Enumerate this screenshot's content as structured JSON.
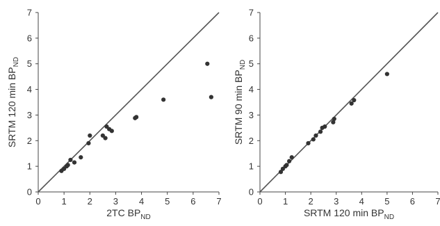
{
  "chart_data": [
    {
      "type": "scatter",
      "title": "",
      "xlabel": {
        "main": "2TC BP",
        "sub": "ND"
      },
      "ylabel": {
        "main": "SRTM 120 min BP",
        "sub": "ND"
      },
      "xlim": [
        0,
        7
      ],
      "ylim": [
        0,
        7
      ],
      "xticks": [
        "0",
        "1",
        "2",
        "3",
        "4",
        "5",
        "6",
        "7"
      ],
      "yticks": [
        "0",
        "1",
        "2",
        "3",
        "4",
        "5",
        "6",
        "7"
      ],
      "identity_line": true,
      "grid": false,
      "colors": {
        "points": "#333333",
        "line": "#555555",
        "axis": "#444444"
      },
      "points": [
        [
          0.9,
          0.82
        ],
        [
          1.0,
          0.9
        ],
        [
          1.1,
          1.0
        ],
        [
          1.15,
          1.05
        ],
        [
          1.25,
          1.25
        ],
        [
          1.4,
          1.15
        ],
        [
          1.65,
          1.35
        ],
        [
          1.95,
          1.9
        ],
        [
          2.0,
          2.2
        ],
        [
          2.5,
          2.2
        ],
        [
          2.6,
          2.1
        ],
        [
          2.65,
          2.55
        ],
        [
          2.75,
          2.45
        ],
        [
          2.85,
          2.38
        ],
        [
          3.75,
          2.88
        ],
        [
          3.8,
          2.92
        ],
        [
          4.85,
          3.6
        ],
        [
          6.55,
          5.0
        ],
        [
          6.7,
          3.7
        ]
      ]
    },
    {
      "type": "scatter",
      "title": "",
      "xlabel": {
        "main": "SRTM 120 min BP",
        "sub": "ND"
      },
      "ylabel": {
        "main": "SRTM 90 min BP",
        "sub": "ND"
      },
      "xlim": [
        0,
        7
      ],
      "ylim": [
        0,
        7
      ],
      "xticks": [
        "0",
        "1",
        "2",
        "3",
        "4",
        "5",
        "6",
        "7"
      ],
      "yticks": [
        "0",
        "1",
        "2",
        "3",
        "4",
        "5",
        "6",
        "7"
      ],
      "identity_line": true,
      "grid": false,
      "colors": {
        "points": "#333333",
        "line": "#555555",
        "axis": "#444444"
      },
      "points": [
        [
          0.82,
          0.78
        ],
        [
          0.9,
          0.9
        ],
        [
          1.0,
          1.0
        ],
        [
          1.05,
          1.05
        ],
        [
          1.15,
          1.2
        ],
        [
          1.25,
          1.35
        ],
        [
          1.9,
          1.9
        ],
        [
          2.1,
          2.05
        ],
        [
          2.2,
          2.2
        ],
        [
          2.38,
          2.35
        ],
        [
          2.45,
          2.5
        ],
        [
          2.55,
          2.55
        ],
        [
          2.88,
          2.72
        ],
        [
          2.92,
          2.85
        ],
        [
          3.6,
          3.45
        ],
        [
          3.7,
          3.58
        ],
        [
          5.0,
          4.6
        ]
      ]
    }
  ]
}
